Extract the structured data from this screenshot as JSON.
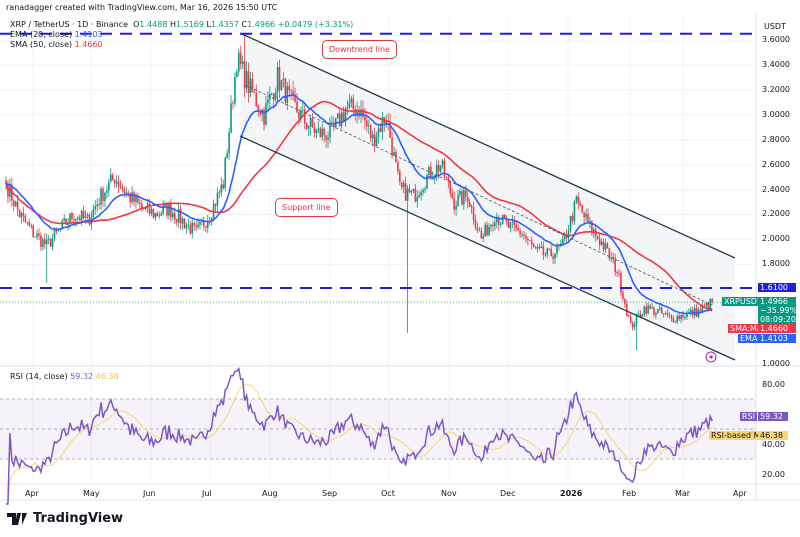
{
  "credit": "ranadagger created with TradingView.com, Mar 16, 2026 15:50 UTC",
  "legend": {
    "symbol": "XRP / TetherUS · 1D · Binance",
    "o_label": "O",
    "o": "1.4488",
    "h_label": "H",
    "h": "1.5169",
    "l_label": "L",
    "l": "1.4357",
    "c_label": "C",
    "c": "1.4966",
    "change": "+0.0479 (+3.31%)",
    "ema_label": "EMA (20, close)",
    "ema": "1.4103",
    "sma_label": "SMA (50, close)",
    "sma": "1.4660"
  },
  "annotations": {
    "downtrend": "Downtrend line",
    "support": "Support line"
  },
  "price_axis": {
    "unit": "USDT",
    "ticks": [
      "3.6000",
      "3.4000",
      "3.2000",
      "3.0000",
      "2.8000",
      "2.6000",
      "2.4000",
      "2.2000",
      "2.0000",
      "1.8000",
      "1.0000"
    ]
  },
  "tags": {
    "level": "1.6100",
    "symbol": "XRPUSDT",
    "price": "1.4966",
    "pct": "−35.99%",
    "countdown": "08:09:20",
    "sma_tag": "SMA:MA",
    "sma": "1.4660",
    "ema_tag": "EMA",
    "ema": "1.4103",
    "rsi_tag": "RSI",
    "rsi": "59.32",
    "rsima_tag": "RSI-based MA",
    "rsima": "46.38"
  },
  "rsi": {
    "label": "RSI (14, close)",
    "value": "59.32",
    "ma": "46.38",
    "ticks": [
      "80.00",
      "40.00",
      "20.00"
    ]
  },
  "time_axis": [
    "Apr",
    "May",
    "Jun",
    "Jul",
    "Aug",
    "Sep",
    "Oct",
    "Nov",
    "Dec",
    "2026",
    "Feb",
    "Mar",
    "Apr"
  ],
  "brand": "TradingView",
  "colors": {
    "up": "#089981",
    "down": "#f23645",
    "ema": "#2962ff",
    "sma": "#f23645",
    "rsi": "#7e57c2",
    "rsi_ma": "#f7d774",
    "level": "#1f1fdc"
  },
  "chart_data": {
    "type": "candlestick",
    "symbol": "XRPUSDT",
    "interval": "1D",
    "ylim": [
      1.0,
      3.7
    ],
    "weekly_closes": [
      [
        "2025-03-17",
        2.45
      ],
      [
        "2025-03-24",
        2.2
      ],
      [
        "2025-03-31",
        2.05
      ],
      [
        "2025-04-07",
        1.95
      ],
      [
        "2025-04-14",
        2.08
      ],
      [
        "2025-04-21",
        2.2
      ],
      [
        "2025-04-28",
        2.15
      ],
      [
        "2025-05-05",
        2.35
      ],
      [
        "2025-05-12",
        2.5
      ],
      [
        "2025-05-19",
        2.35
      ],
      [
        "2025-05-26",
        2.25
      ],
      [
        "2025-06-02",
        2.2
      ],
      [
        "2025-06-09",
        2.25
      ],
      [
        "2025-06-16",
        2.15
      ],
      [
        "2025-06-23",
        2.05
      ],
      [
        "2025-06-30",
        2.2
      ],
      [
        "2025-07-07",
        2.45
      ],
      [
        "2025-07-14",
        3.45
      ],
      [
        "2025-07-21",
        3.2
      ],
      [
        "2025-07-28",
        3.0
      ],
      [
        "2025-08-04",
        3.3
      ],
      [
        "2025-08-11",
        3.1
      ],
      [
        "2025-08-18",
        2.95
      ],
      [
        "2025-08-25",
        2.85
      ],
      [
        "2025-09-01",
        2.85
      ],
      [
        "2025-09-08",
        3.05
      ],
      [
        "2025-09-15",
        3.05
      ],
      [
        "2025-09-22",
        2.8
      ],
      [
        "2025-09-29",
        3.0
      ],
      [
        "2025-10-06",
        2.4
      ],
      [
        "2025-10-13",
        2.35
      ],
      [
        "2025-10-20",
        2.5
      ],
      [
        "2025-10-27",
        2.6
      ],
      [
        "2025-11-03",
        2.3
      ],
      [
        "2025-11-10",
        2.35
      ],
      [
        "2025-11-17",
        2.0
      ],
      [
        "2025-11-24",
        2.2
      ],
      [
        "2025-12-01",
        2.1
      ],
      [
        "2025-12-08",
        2.05
      ],
      [
        "2025-12-15",
        1.9
      ],
      [
        "2025-12-22",
        1.87
      ],
      [
        "2025-12-29",
        1.95
      ],
      [
        "2026-01-05",
        2.3
      ],
      [
        "2026-01-12",
        2.1
      ],
      [
        "2026-01-19",
        1.95
      ],
      [
        "2026-01-26",
        1.75
      ],
      [
        "2026-02-02",
        1.3
      ],
      [
        "2026-02-09",
        1.45
      ],
      [
        "2026-02-16",
        1.42
      ],
      [
        "2026-02-23",
        1.36
      ],
      [
        "2026-03-02",
        1.4
      ],
      [
        "2026-03-09",
        1.42
      ],
      [
        "2026-03-16",
        1.4966
      ]
    ],
    "notable_wicks": [
      [
        "2025-04-07",
        1.65,
        "low"
      ],
      [
        "2025-07-18",
        3.66,
        "high"
      ],
      [
        "2025-10-10",
        1.25,
        "low"
      ],
      [
        "2026-02-05",
        1.11,
        "low"
      ]
    ],
    "horizontal_levels": [
      3.65,
      1.61
    ],
    "indicators": [
      "EMA 20",
      "SMA 50",
      "RSI 14",
      "RSI-based MA 14"
    ]
  }
}
